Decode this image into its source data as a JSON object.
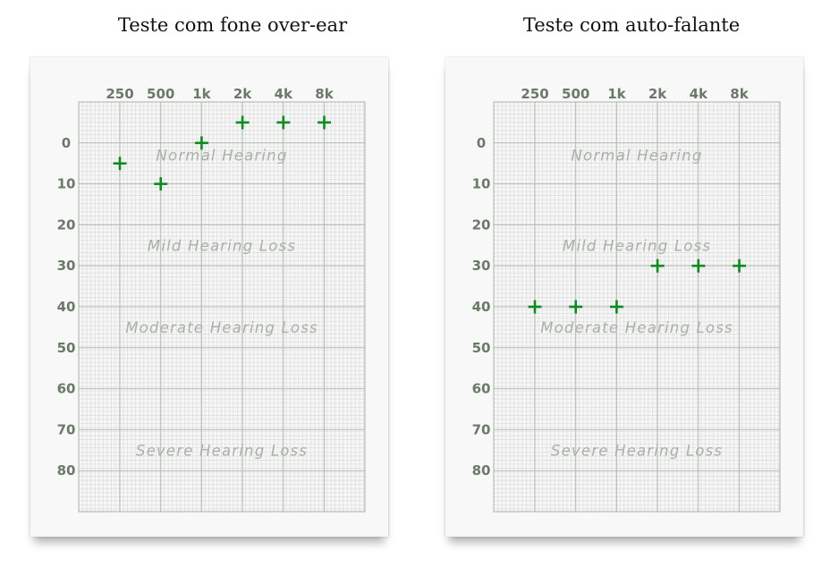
{
  "panels": [
    {
      "title": "Teste com fone over-ear",
      "chart_data": {
        "type": "scatter",
        "x_categories": [
          "250",
          "500",
          "1k",
          "2k",
          "4k",
          "8k"
        ],
        "y_ticks": [
          0,
          10,
          20,
          30,
          40,
          50,
          60,
          70,
          80
        ],
        "ylim": [
          -10,
          90
        ],
        "y_inverted": true,
        "zones": [
          {
            "label": "Normal Hearing",
            "level": 3
          },
          {
            "label": "Mild Hearing Loss",
            "level": 25
          },
          {
            "label": "Moderate Hearing Loss",
            "level": 45
          },
          {
            "label": "Severe Hearing Loss",
            "level": 75
          }
        ],
        "points": [
          {
            "x": "250",
            "y": 5
          },
          {
            "x": "500",
            "y": 10
          },
          {
            "x": "1k",
            "y": 0
          },
          {
            "x": "2k",
            "y": -5
          },
          {
            "x": "4k",
            "y": -5
          },
          {
            "x": "8k",
            "y": -5
          }
        ],
        "marker": "+",
        "marker_color": "#0f8a22",
        "grid": true
      }
    },
    {
      "title": "Teste com auto-falante",
      "chart_data": {
        "type": "scatter",
        "x_categories": [
          "250",
          "500",
          "1k",
          "2k",
          "4k",
          "8k"
        ],
        "y_ticks": [
          0,
          10,
          20,
          30,
          40,
          50,
          60,
          70,
          80
        ],
        "ylim": [
          -10,
          90
        ],
        "y_inverted": true,
        "zones": [
          {
            "label": "Normal Hearing",
            "level": 3
          },
          {
            "label": "Mild Hearing Loss",
            "level": 25
          },
          {
            "label": "Moderate Hearing Loss",
            "level": 45
          },
          {
            "label": "Severe Hearing Loss",
            "level": 75
          }
        ],
        "points": [
          {
            "x": "250",
            "y": 40
          },
          {
            "x": "500",
            "y": 40
          },
          {
            "x": "1k",
            "y": 40
          },
          {
            "x": "2k",
            "y": 30
          },
          {
            "x": "4k",
            "y": 30
          },
          {
            "x": "8k",
            "y": 30
          }
        ],
        "marker": "+",
        "marker_color": "#0f8a22",
        "grid": true
      }
    }
  ]
}
